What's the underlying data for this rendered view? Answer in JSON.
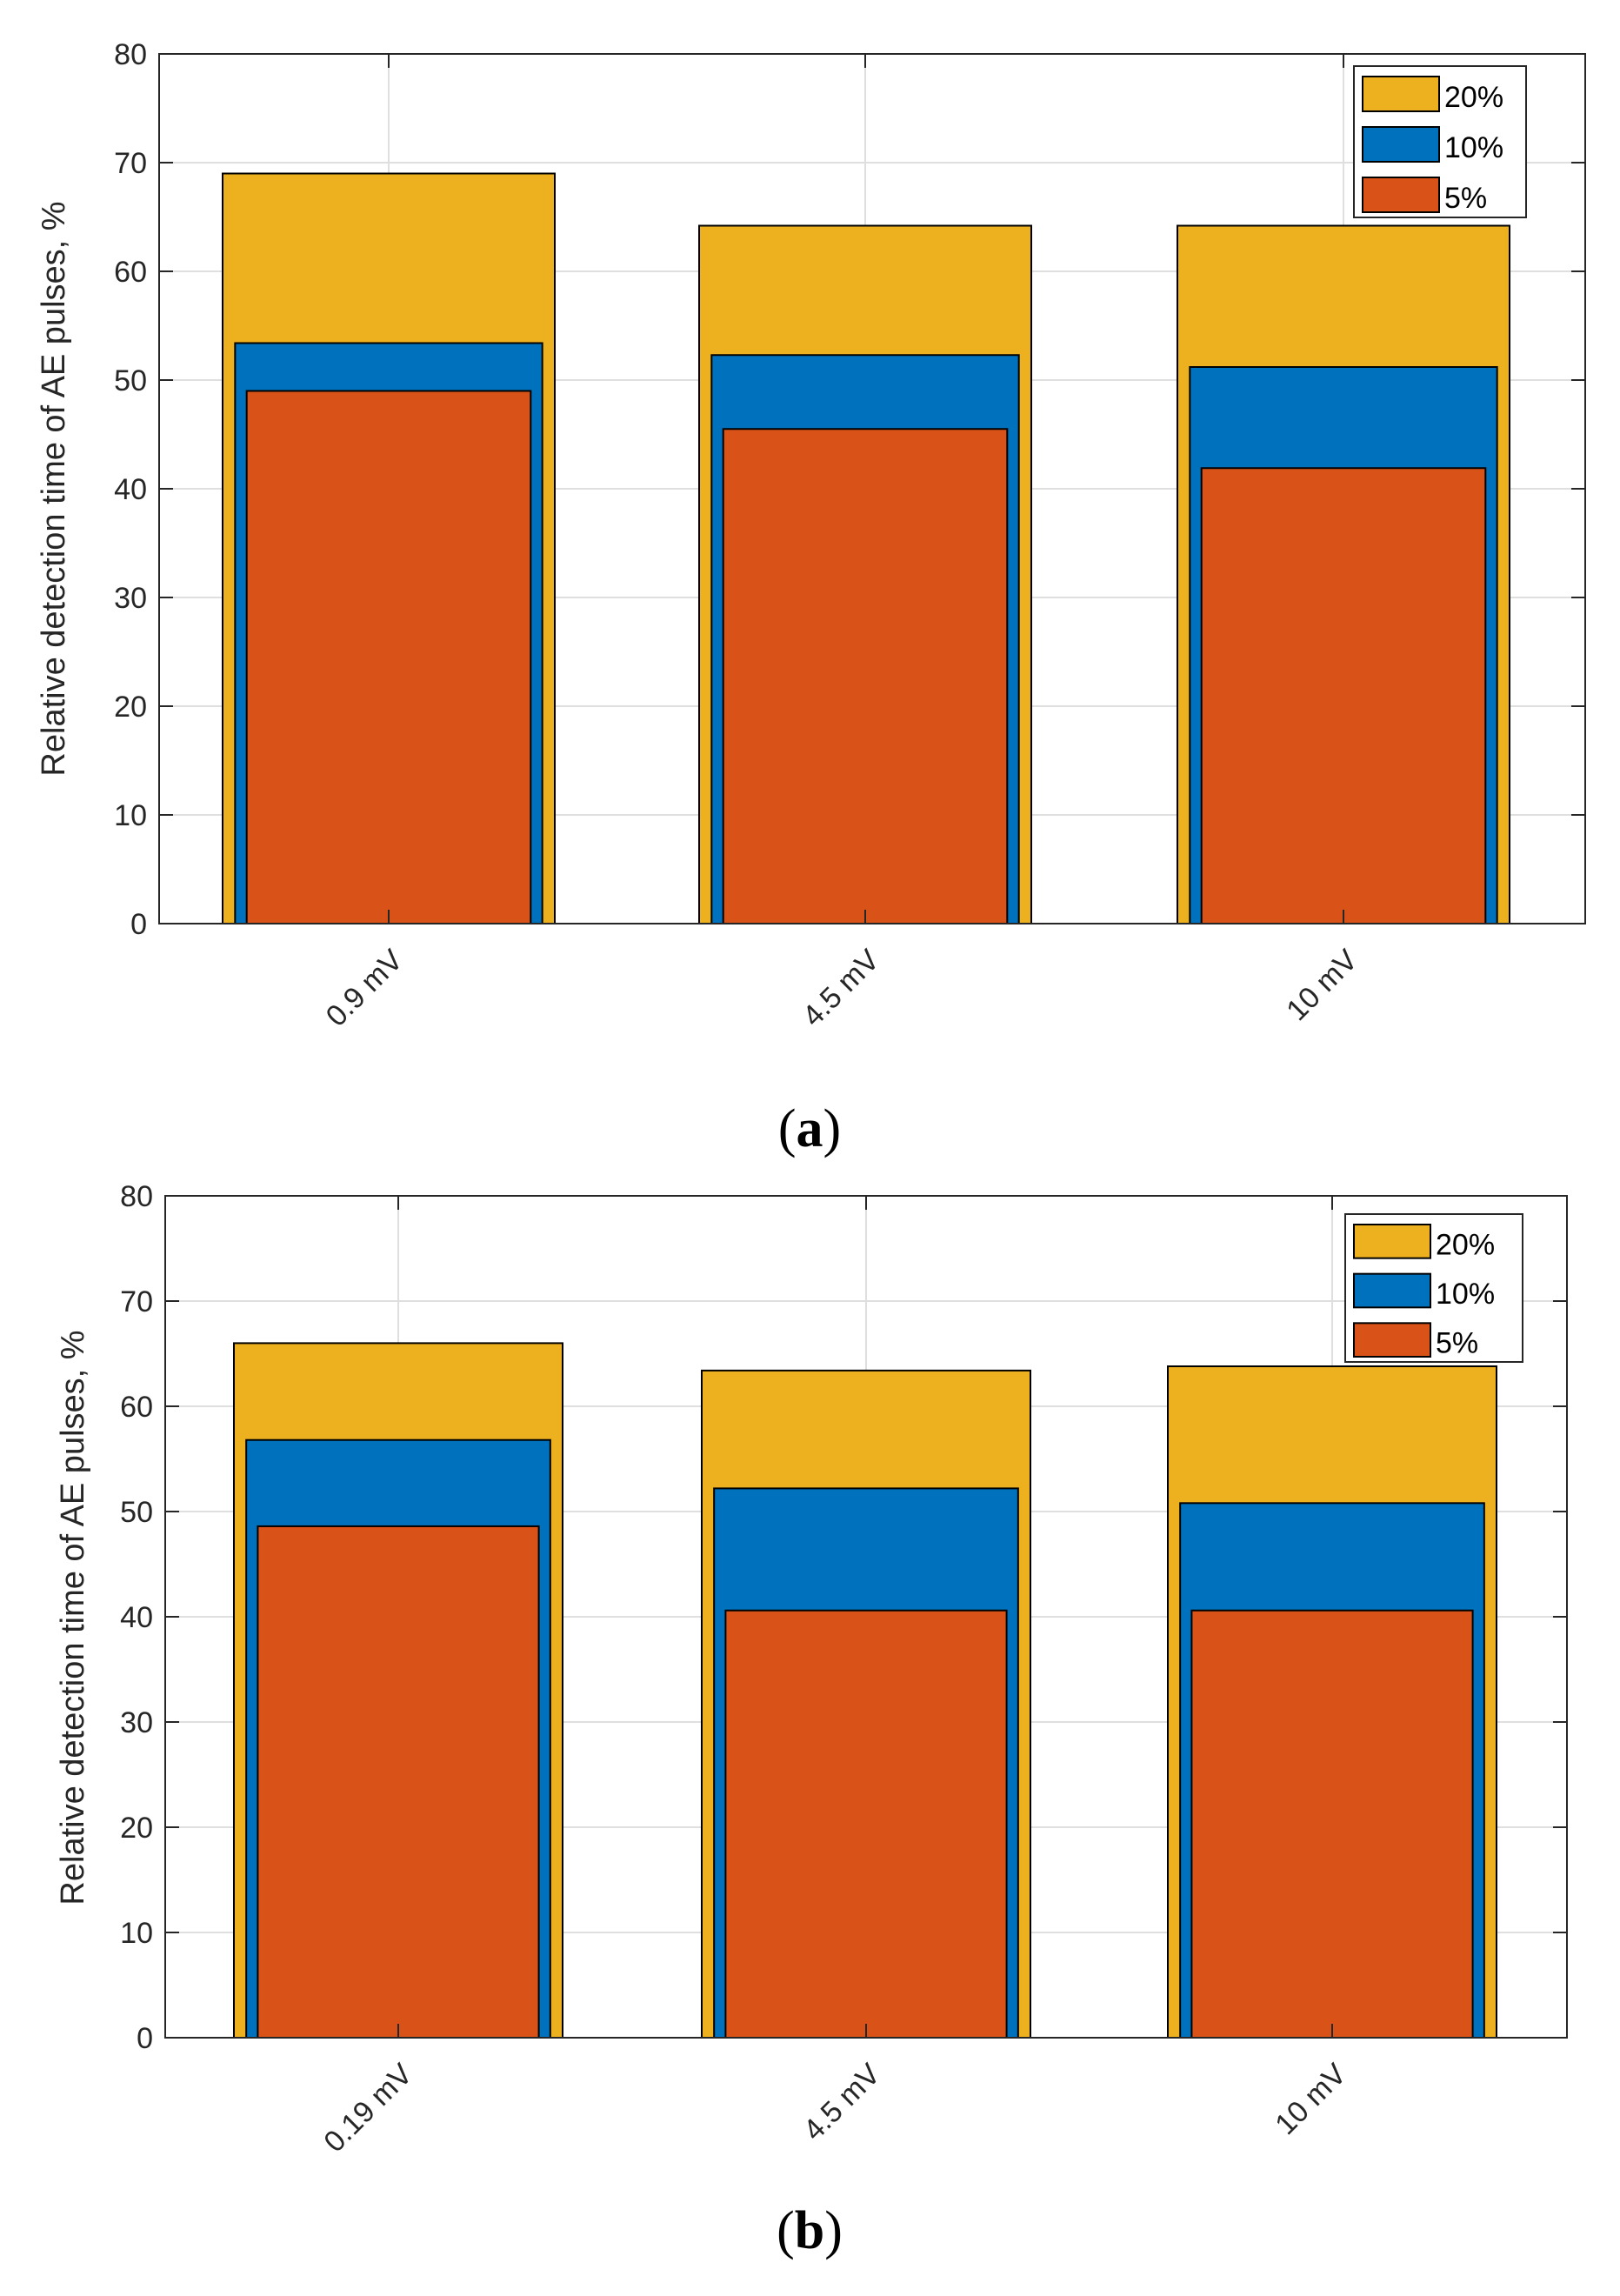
{
  "colors": {
    "series_20": "#EDB120",
    "series_10": "#0072BD",
    "series_5": "#D95319",
    "grid": "#DFDFDF",
    "axis": "#262626"
  },
  "chart_data": [
    {
      "type": "bar",
      "panel": "a",
      "caption_letter": "a",
      "ylabel": "Relative detection time of AE pulses, %",
      "xlabel": "",
      "ylim": [
        0,
        80
      ],
      "yticks": [
        "0",
        "10",
        "20",
        "30",
        "40",
        "50",
        "60",
        "70",
        "80"
      ],
      "grid": true,
      "legend_position": "top-right",
      "categories": [
        "0.9 mV",
        "4.5 mV",
        "10 mV"
      ],
      "series": [
        {
          "name": "20%",
          "values": [
            69,
            64.2,
            64.2
          ]
        },
        {
          "name": "10%",
          "values": [
            53.4,
            52.3,
            51.2
          ]
        },
        {
          "name": "5%",
          "values": [
            49,
            45.5,
            41.9
          ]
        }
      ]
    },
    {
      "type": "bar",
      "panel": "b",
      "caption_letter": "b",
      "ylabel": "Relative detection time of AE pulses, %",
      "xlabel": "",
      "ylim": [
        0,
        80
      ],
      "yticks": [
        "0",
        "10",
        "20",
        "30",
        "40",
        "50",
        "60",
        "70",
        "80"
      ],
      "grid": true,
      "legend_position": "top-right",
      "categories": [
        "0.19 mV",
        "4.5 mV",
        "10 mV"
      ],
      "series": [
        {
          "name": "20%",
          "values": [
            66,
            63.4,
            63.8
          ]
        },
        {
          "name": "10%",
          "values": [
            56.8,
            52.2,
            50.8
          ]
        },
        {
          "name": "5%",
          "values": [
            48.6,
            40.6,
            40.6
          ]
        }
      ]
    }
  ]
}
